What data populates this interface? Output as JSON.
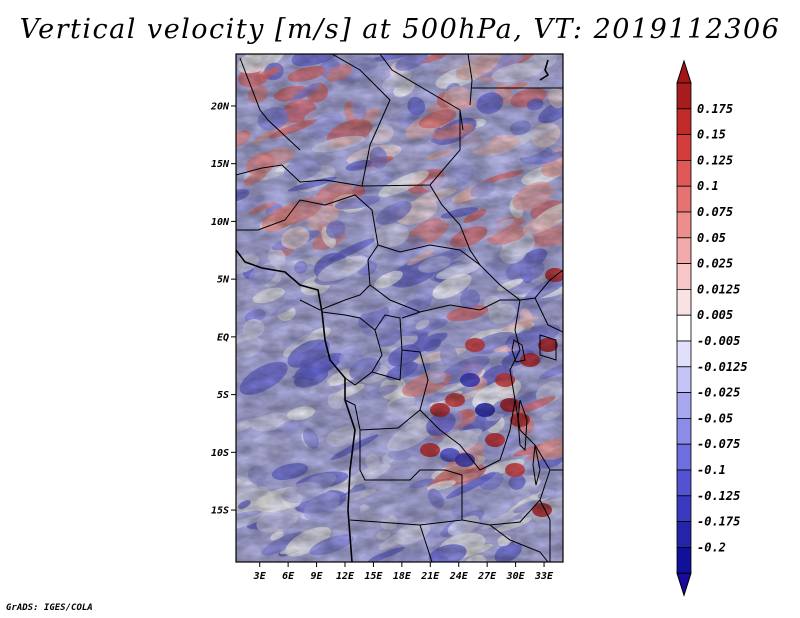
{
  "title": "Vertical velocity [m/s] at 500hPa, VT: 2019112306",
  "credit": "GrADS: IGES/COLA",
  "map": {
    "lat_ticks": [
      "20N",
      "15N",
      "10N",
      "5N",
      "EQ",
      "5S",
      "10S",
      "15S"
    ],
    "lat_values": [
      20,
      15,
      10,
      5,
      0,
      -5,
      -10,
      -15
    ],
    "lon_ticks": [
      "3E",
      "6E",
      "9E",
      "12E",
      "15E",
      "18E",
      "21E",
      "24E",
      "27E",
      "30E",
      "33E"
    ],
    "lon_values": [
      3,
      6,
      9,
      12,
      15,
      18,
      21,
      24,
      27,
      30,
      33
    ],
    "lat_range": [
      -19.5,
      24.5
    ],
    "lon_range": [
      0.5,
      35
    ]
  },
  "colorbar": {
    "labels": [
      "0.175",
      "0.15",
      "0.125",
      "0.1",
      "0.075",
      "0.05",
      "0.025",
      "0.0125",
      "0.005",
      "-0.005",
      "-0.0125",
      "-0.025",
      "-0.05",
      "-0.075",
      "-0.1",
      "-0.125",
      "-0.175",
      "-0.2"
    ],
    "colors": [
      "#a71c1c",
      "#c22a2a",
      "#d53c3c",
      "#e05858",
      "#e67272",
      "#ec8e8e",
      "#f2aaaa",
      "#f7c6c6",
      "#fbe2e2",
      "#ffffff",
      "#e0e0fb",
      "#c4c4f6",
      "#a8a8f0",
      "#8c8ce8",
      "#6e6ee0",
      "#5252d2",
      "#3a3ac0",
      "#2424a8",
      "#10109a"
    ],
    "top_arrow_color": "#a51515",
    "bottom_arrow_color": "#1a0aa0"
  }
}
